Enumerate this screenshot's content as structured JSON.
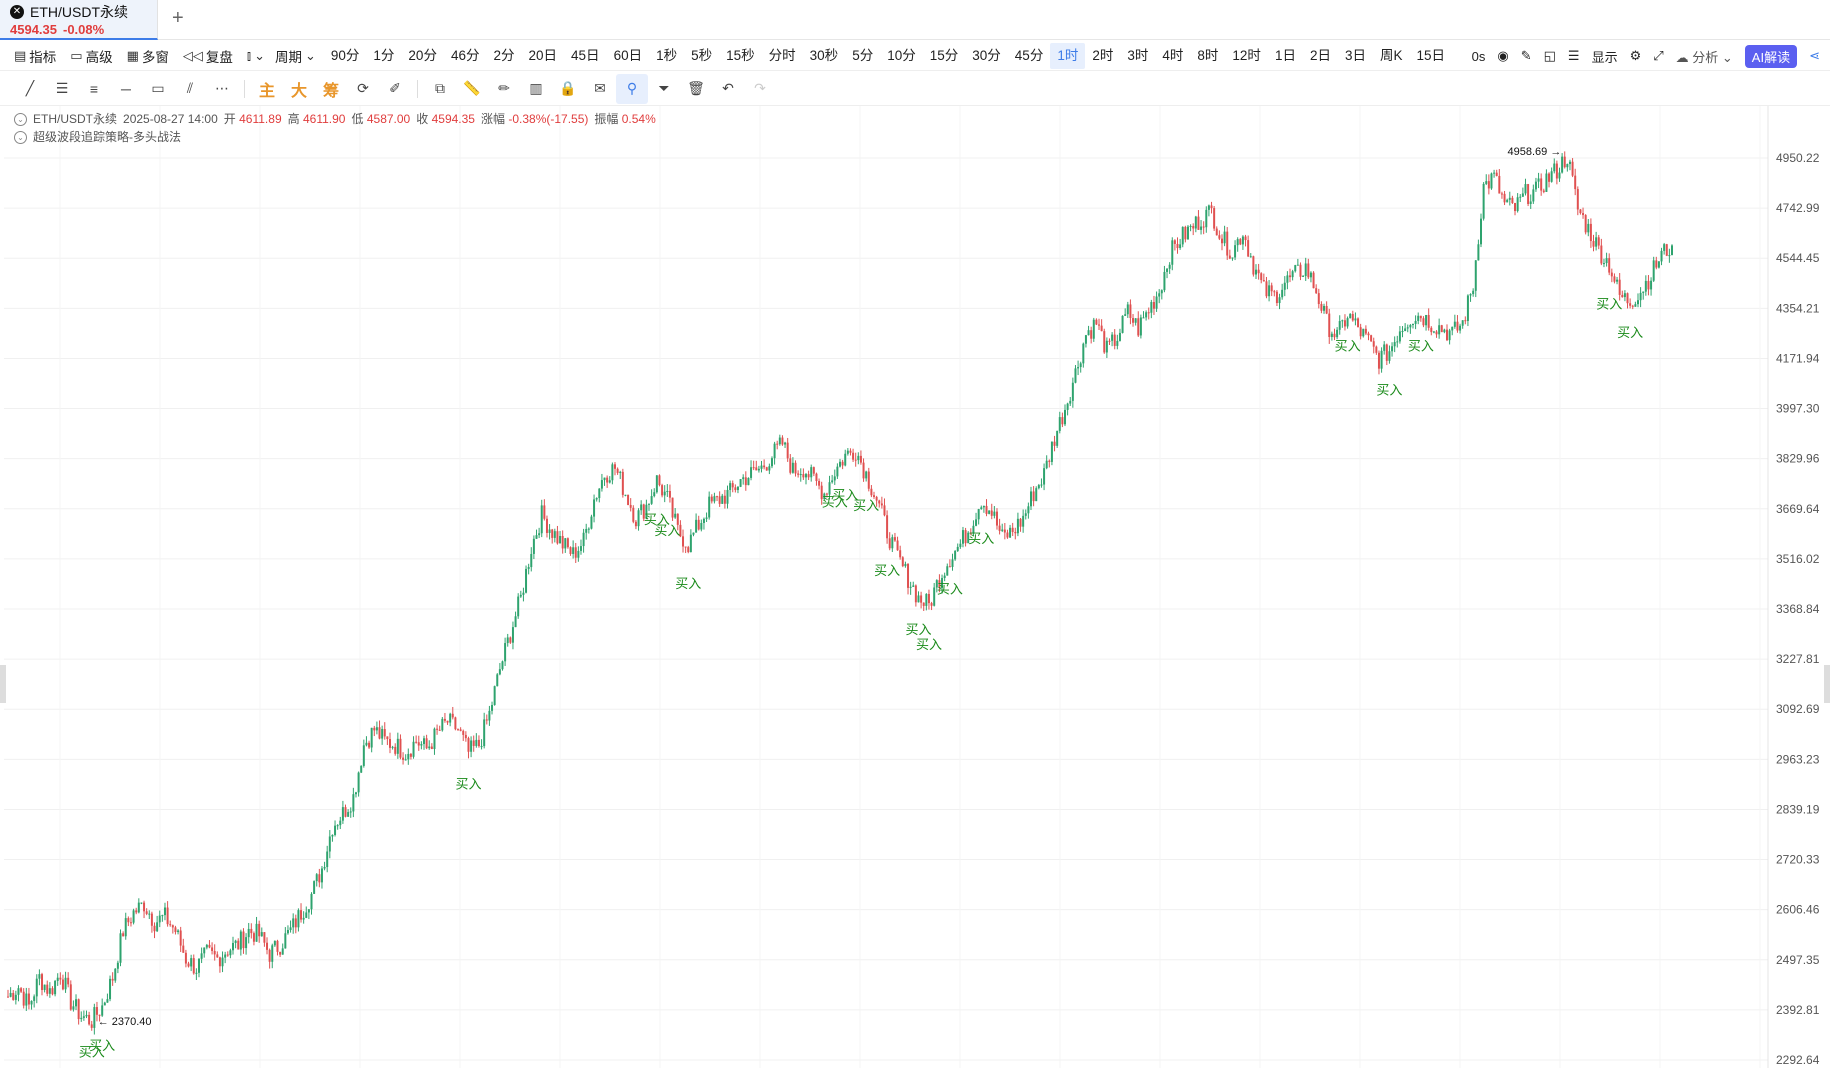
{
  "tab": {
    "close_icon": "close-icon",
    "symbol": "ETH/USDT永续",
    "price": "4594.35",
    "change_pct": "-0.08%",
    "add_label": "+"
  },
  "toolbar1": {
    "indicator": "指标",
    "advanced": "高级",
    "multi_window": "多窗",
    "replay": "复盘",
    "period": "周期",
    "periods": [
      "90分",
      "1分",
      "20分",
      "46分",
      "2分",
      "20日",
      "45日",
      "60日",
      "1秒",
      "5秒",
      "15秒",
      "分时",
      "30秒",
      "5分",
      "10分",
      "15分",
      "30分",
      "45分",
      "1时",
      "2时",
      "3时",
      "4时",
      "8时",
      "12时",
      "1日",
      "2日",
      "3日",
      "周K",
      "15日"
    ],
    "active_period": "1时",
    "right": {
      "timer": "0s",
      "display": "显示",
      "analysis": "分析",
      "ai": "AI解读"
    }
  },
  "toolbar2": {
    "text_tools": [
      "主",
      "大",
      "筹"
    ]
  },
  "legend": {
    "symbol": "ETH/USDT永续",
    "datetime": "2025-08-27 14:00",
    "open_label": "开",
    "open": "4611.89",
    "high_label": "高",
    "high": "4611.90",
    "low_label": "低",
    "low": "4587.00",
    "close_label": "收",
    "close": "4594.35",
    "change_label": "涨幅",
    "change": "-0.38%(-17.55)",
    "amp_label": "振幅",
    "amp": "0.54%",
    "strategy": "超级波段追踪策略-多头战法"
  },
  "chart_data": {
    "type": "line",
    "y_ticks": [
      "4950.22",
      "4742.99",
      "4544.45",
      "4354.21",
      "4171.94",
      "3997.30",
      "3829.96",
      "3669.64",
      "3516.02",
      "3368.84",
      "3227.81",
      "3092.69",
      "2963.23",
      "2839.19",
      "2720.33",
      "2606.46",
      "2497.35",
      "2392.81",
      "2292.64"
    ],
    "y_scale": "log",
    "ylim": [
      2292.64,
      4950.22
    ],
    "series": [
      {
        "values": [
          2420,
          2440,
          2400,
          2460,
          2430,
          2470,
          2410,
          2380,
          2370.4,
          2400,
          2460,
          2560,
          2600,
          2620,
          2580,
          2590,
          2560,
          2500,
          2480,
          2510,
          2500,
          2520,
          2530,
          2560,
          2550,
          2510,
          2530,
          2560,
          2600,
          2640,
          2700,
          2800,
          2830,
          2870,
          3000,
          3040,
          3010,
          3000,
          2980,
          3010,
          2990,
          3030,
          3060,
          3040,
          2980,
          3000,
          3080,
          3200,
          3300,
          3400,
          3550,
          3650,
          3600,
          3560,
          3530,
          3570,
          3700,
          3780,
          3800,
          3720,
          3640,
          3680,
          3760,
          3700,
          3600,
          3560,
          3620,
          3680,
          3700,
          3720,
          3760,
          3780,
          3800,
          3840,
          3880,
          3790,
          3800,
          3760,
          3720,
          3790,
          3840,
          3860,
          3780,
          3700,
          3600,
          3520,
          3460,
          3400,
          3380,
          3460,
          3520,
          3560,
          3620,
          3700,
          3660,
          3580,
          3600,
          3640,
          3720,
          3780,
          3900,
          4000,
          4120,
          4260,
          4300,
          4200,
          4250,
          4340,
          4280,
          4350,
          4420,
          4560,
          4620,
          4660,
          4700,
          4730,
          4620,
          4570,
          4650,
          4520,
          4420,
          4400,
          4450,
          4480,
          4510,
          4420,
          4300,
          4250,
          4330,
          4280,
          4230,
          4170,
          4200,
          4280,
          4320,
          4330,
          4300,
          4280,
          4260,
          4300,
          4440,
          4830,
          4870,
          4760,
          4740,
          4800,
          4810,
          4860,
          4900,
          4958.69,
          4740,
          4660,
          4580,
          4520,
          4400,
          4380,
          4420,
          4480,
          4560,
          4594.35
        ]
      }
    ],
    "annotations": {
      "high_label": "4958.69",
      "low_label": "2370.40",
      "buy_label": "买入",
      "buy_indices": [
        8,
        9,
        44,
        62,
        63,
        65,
        79,
        80,
        82,
        84,
        87,
        88,
        90,
        93,
        128,
        132,
        135,
        153,
        155
      ]
    },
    "colors": {
      "up": "#2ea36e",
      "down": "#e05050",
      "buy": "#1a8a1a"
    }
  }
}
